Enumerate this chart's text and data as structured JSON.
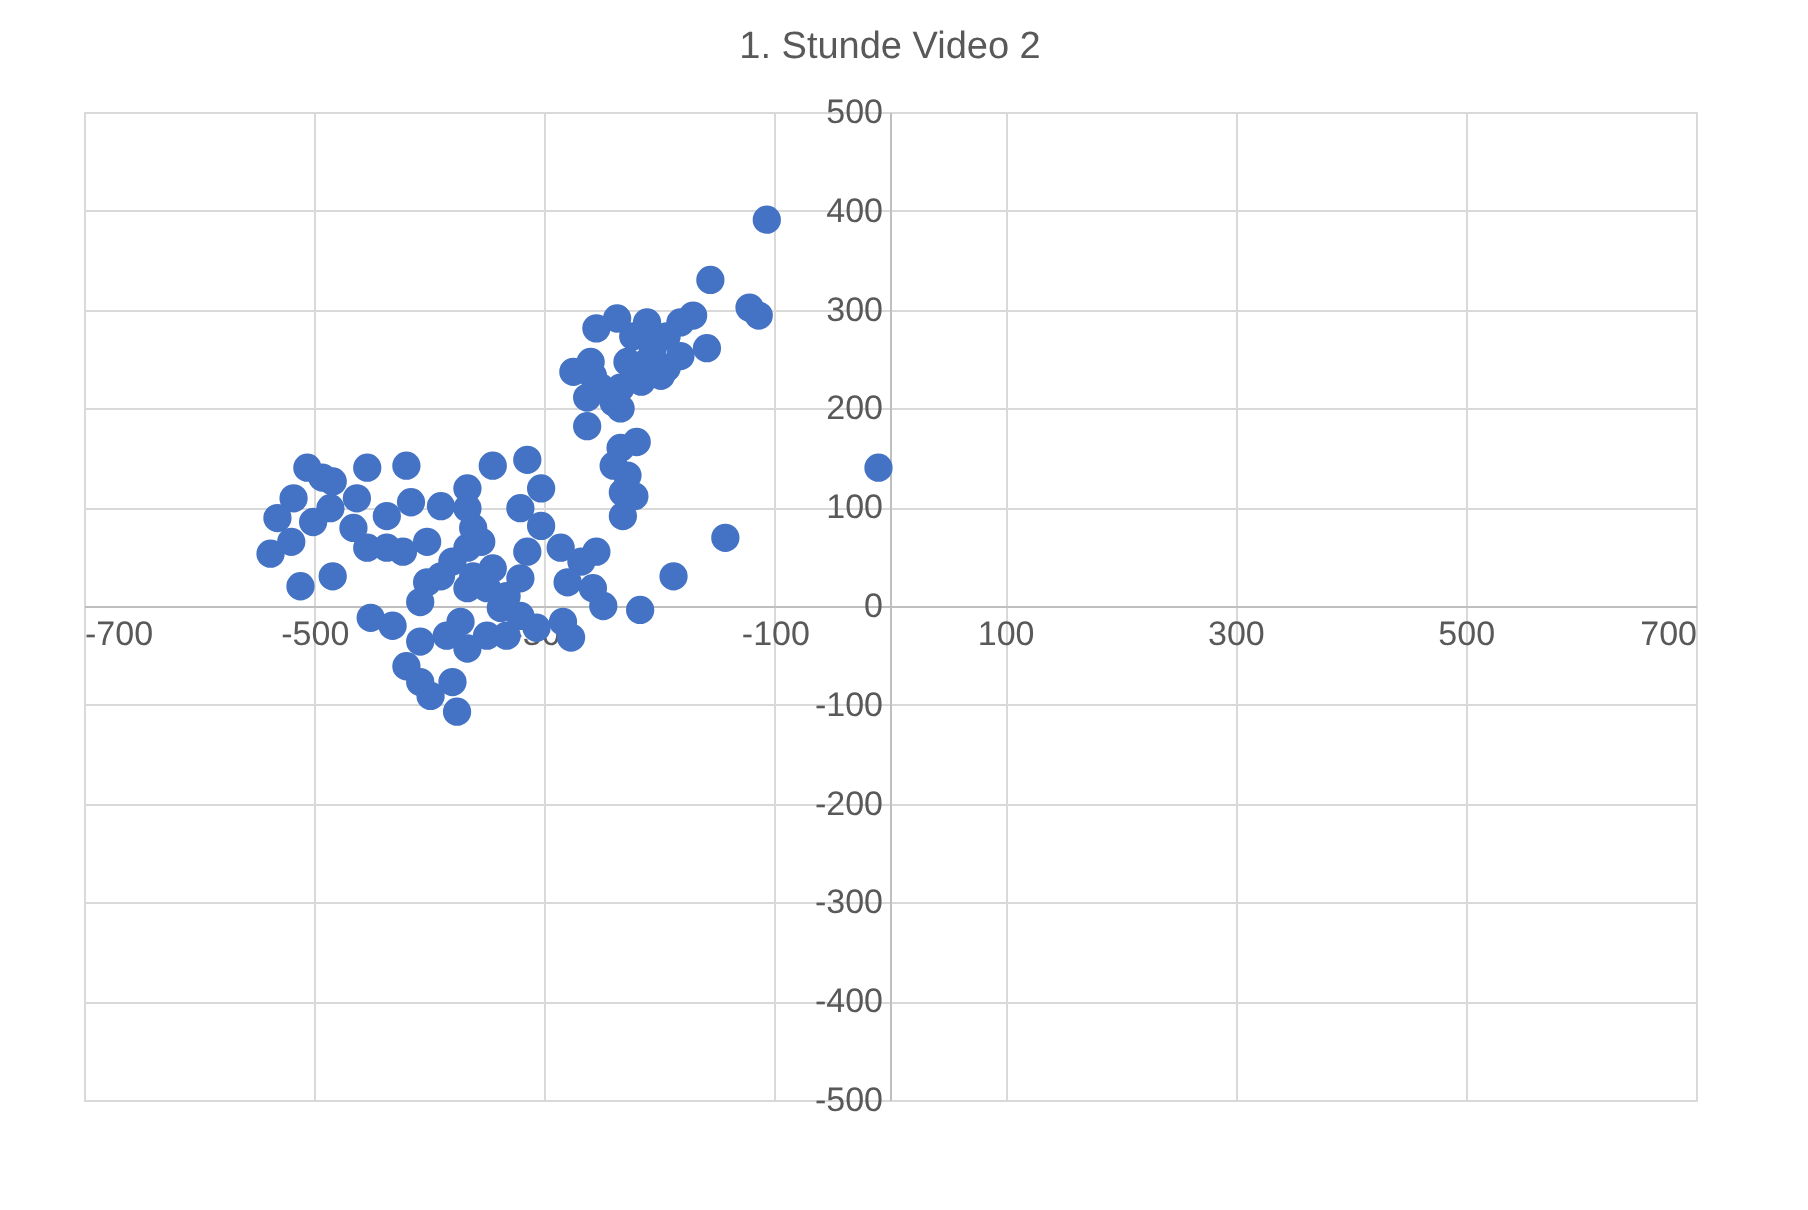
{
  "chart_data": {
    "type": "scatter",
    "title": "1. Stunde Video 2",
    "xlim": [
      -700,
      700
    ],
    "ylim": [
      -500,
      500
    ],
    "xticks": [
      -700,
      -500,
      -300,
      -100,
      100,
      300,
      500,
      700
    ],
    "yticks": [
      -500,
      -400,
      -300,
      -200,
      -100,
      0,
      100,
      200,
      300,
      400,
      500
    ],
    "grid": true,
    "marker": "circle",
    "series": [
      {
        "color": "#4472c4",
        "x": [
          -107,
          -156,
          -122,
          -114,
          -143,
          -10,
          -188,
          -217,
          -159,
          -171,
          -182,
          -194,
          -206,
          -211,
          -199,
          -216,
          -194,
          -182,
          -223,
          -211,
          -228,
          -234,
          -240,
          -234,
          -251,
          -258,
          -275,
          -260,
          -237,
          -255,
          -263,
          -263,
          -220,
          -234,
          -240,
          -228,
          -232,
          -222,
          -232,
          -255,
          -268,
          -286,
          -280,
          -258,
          -249,
          -284,
          -277,
          -303,
          -315,
          -321,
          -303,
          -315,
          -321,
          -307,
          -333,
          -345,
          -367,
          -390,
          -420,
          -416,
          -423,
          -402,
          -437,
          -454,
          -463,
          -466,
          -454,
          -486,
          -493,
          -506,
          -518,
          -532,
          -520,
          -538,
          -501,
          -512,
          -484,
          -451,
          -432,
          -408,
          -420,
          -408,
          -399,
          -376,
          -380,
          -402,
          -408,
          -390,
          -380,
          -367,
          -362,
          -355,
          -367,
          -350,
          -338,
          -321,
          -373,
          -367,
          -350,
          -385,
          -345,
          -333,
          -362,
          -367,
          -437,
          -484
        ],
        "values": [
          391,
          330,
          302,
          294,
          69,
          140,
          30,
          -4,
          261,
          294,
          287,
          273,
          261,
          247,
          233,
          227,
          241,
          253,
          273,
          287,
          247,
          221,
          206,
          200,
          221,
          233,
          237,
          247,
          291,
          281,
          211,
          182,
          166,
          160,
          142,
          132,
          115,
          111,
          91,
          55,
          45,
          59,
          24,
          18,
          0,
          -16,
          -32,
          119,
          148,
          99,
          81,
          55,
          28,
          -22,
          -30,
          142,
          119,
          101,
          142,
          105,
          55,
          65,
          91,
          140,
          109,
          79,
          59,
          99,
          130,
          140,
          109,
          89,
          65,
          53,
          85,
          20,
          30,
          -12,
          -20,
          -36,
          -61,
          -77,
          -91,
          -107,
          -77,
          24,
          4,
          30,
          45,
          59,
          79,
          65,
          18,
          18,
          -2,
          -10,
          -16,
          -43,
          -30,
          -30,
          38,
          10,
          30,
          99,
          59,
          126
        ]
      }
    ]
  }
}
